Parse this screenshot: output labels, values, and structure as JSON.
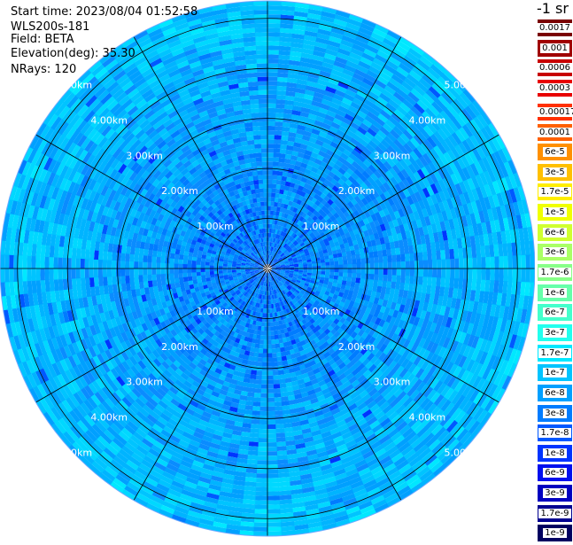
{
  "header": {
    "start_time": "Start time: 2023/08/04 01:52:58",
    "instrument": "WLS200s-181",
    "field": "Field: BETA",
    "elevation": "Elevation(deg): 35.30",
    "nrays": "NRays: 120"
  },
  "colorbar": {
    "unit_label": "-1 sr",
    "bins": [
      {
        "label": "0.0017",
        "color": "#7a0000",
        "text": "#ffffff"
      },
      {
        "label": "0.001",
        "color": "#a00000",
        "text": "#ffffff"
      },
      {
        "label": "0.0006",
        "color": "#c80000",
        "text": "#ffffff"
      },
      {
        "label": "0.0003",
        "color": "#e80000",
        "text": "#ffffff"
      },
      {
        "label": "0.00017",
        "color": "#ff3000",
        "text": "#000000"
      },
      {
        "label": "0.0001",
        "color": "#ff6000",
        "text": "#000000"
      },
      {
        "label": "6e-5",
        "color": "#ff9000",
        "text": "#000000"
      },
      {
        "label": "3e-5",
        "color": "#ffc000",
        "text": "#000000"
      },
      {
        "label": "1.7e-5",
        "color": "#ffee00",
        "text": "#000000"
      },
      {
        "label": "1e-5",
        "color": "#f0ff00",
        "text": "#000000"
      },
      {
        "label": "6e-6",
        "color": "#d0ff30",
        "text": "#000000"
      },
      {
        "label": "3e-6",
        "color": "#aaff66",
        "text": "#000000"
      },
      {
        "label": "1.7e-6",
        "color": "#88ff88",
        "text": "#000000"
      },
      {
        "label": "1e-6",
        "color": "#66ffaa",
        "text": "#000000"
      },
      {
        "label": "6e-7",
        "color": "#44ffcc",
        "text": "#000000"
      },
      {
        "label": "3e-7",
        "color": "#22ffee",
        "text": "#000000"
      },
      {
        "label": "1.7e-7",
        "color": "#00e8ff",
        "text": "#000000"
      },
      {
        "label": "1e-7",
        "color": "#00c4ff",
        "text": "#000000"
      },
      {
        "label": "6e-8",
        "color": "#00a0ff",
        "text": "#000000"
      },
      {
        "label": "3e-8",
        "color": "#007cff",
        "text": "#000000"
      },
      {
        "label": "1.7e-8",
        "color": "#0058ff",
        "text": "#ffffff"
      },
      {
        "label": "1e-8",
        "color": "#0034ff",
        "text": "#ffffff"
      },
      {
        "label": "6e-9",
        "color": "#0010ee",
        "text": "#ffffff"
      },
      {
        "label": "3e-9",
        "color": "#0000c0",
        "text": "#ffffff"
      },
      {
        "label": "1.7e-9",
        "color": "#000090",
        "text": "#ffffff"
      },
      {
        "label": "1e-9",
        "color": "#000060",
        "text": "#ffffff"
      }
    ]
  },
  "chart_data": {
    "type": "heatmap",
    "plot_kind": "polar-ppi",
    "field": "BETA",
    "units": "-1 sr",
    "elevation_deg": 35.3,
    "n_rays": 120,
    "range_rings_km": [
      1,
      2,
      3,
      4,
      5
    ],
    "ring_labels": [
      "1.00km",
      "2.00km",
      "3.00km",
      "4.00km",
      "5.00km"
    ],
    "max_range_km": 5.35,
    "azimuth_spokes_deg": [
      0,
      30,
      60,
      90,
      120,
      150,
      180,
      210,
      240,
      270,
      300,
      330
    ],
    "dominant_bins": [
      "1.7e-8",
      "3e-8",
      "6e-8",
      "1e-7",
      "1.7e-7"
    ],
    "colors": {
      "ring": "#000000",
      "label": "#ffffff"
    }
  }
}
